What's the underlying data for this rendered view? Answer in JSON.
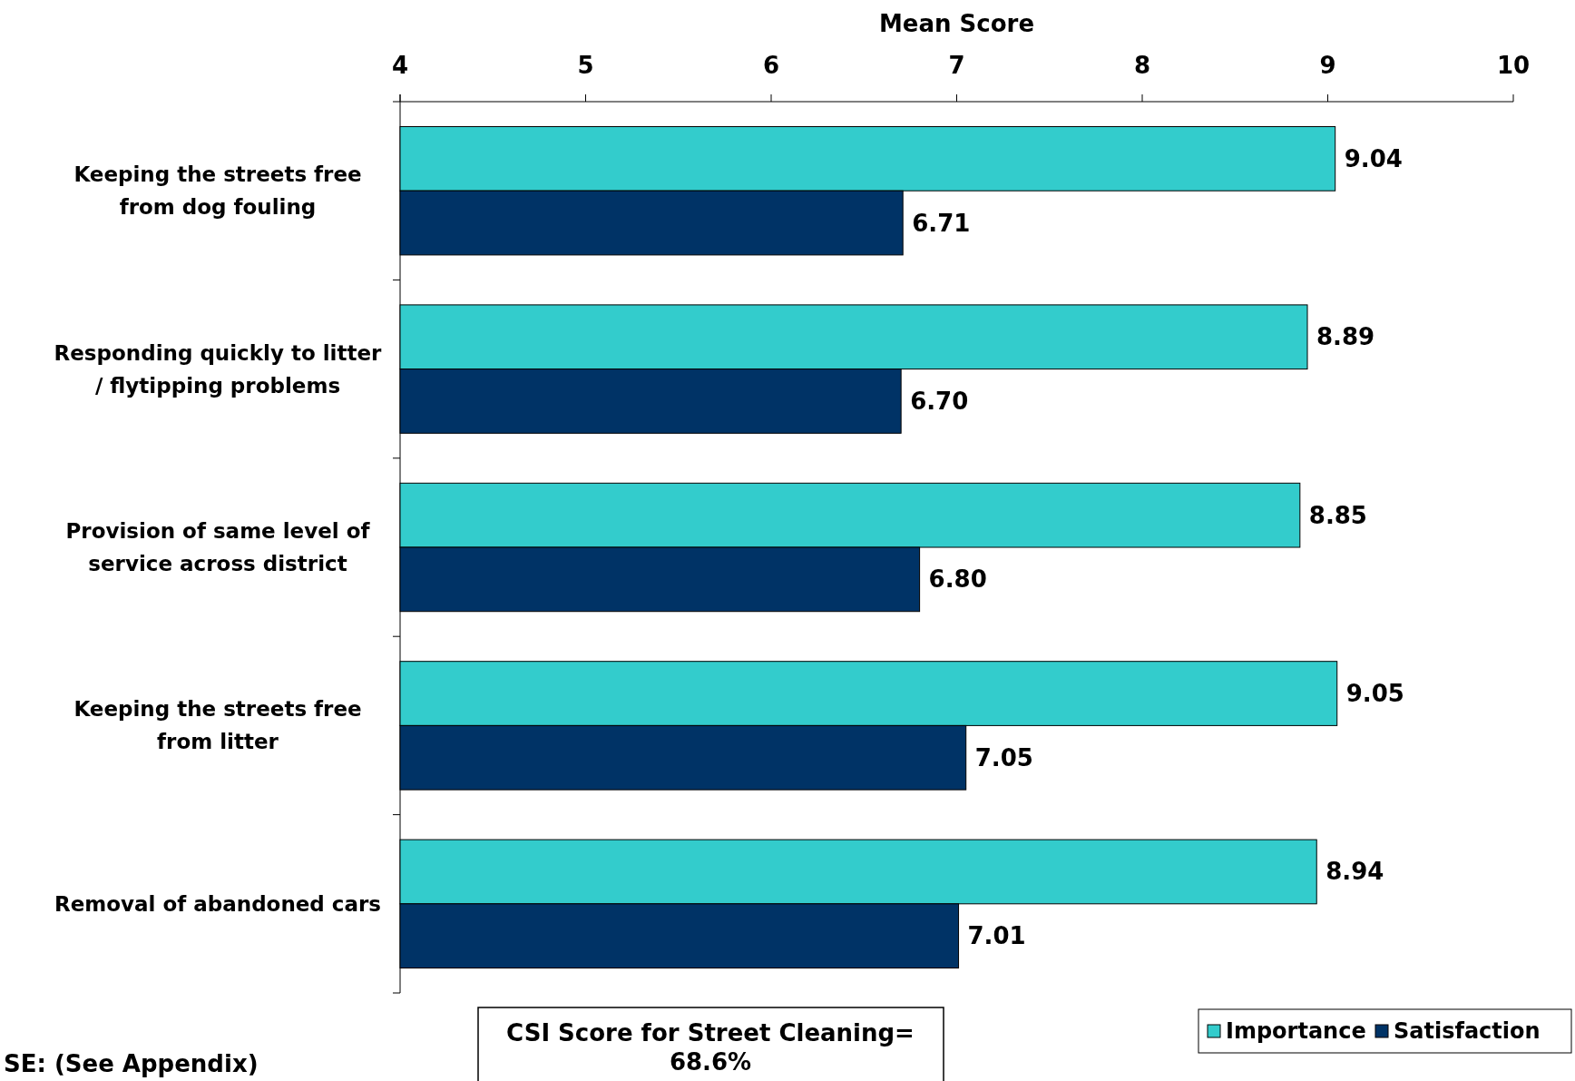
{
  "chart_data": {
    "type": "bar",
    "orientation": "horizontal",
    "xlabel": "Mean Score",
    "categories": [
      "Keeping the streets free from dog fouling",
      "Responding quickly to litter / flytipping problems",
      "Provision of same level of service across district",
      "Keeping the streets free from litter",
      "Removal of abandoned cars"
    ],
    "series": [
      {
        "name": "Importance",
        "color": "#33cccc",
        "values": [
          9.04,
          8.89,
          8.85,
          9.05,
          8.94
        ],
        "value_labels": [
          "9.04",
          "8.89",
          "8.85",
          "9.05",
          "8.94"
        ]
      },
      {
        "name": "Satisfaction",
        "color": "#003366",
        "values": [
          6.71,
          6.7,
          6.8,
          7.05,
          7.01
        ],
        "value_labels": [
          "6.71",
          "6.70",
          "6.80",
          "7.05",
          "7.01"
        ]
      }
    ],
    "xlim": [
      4,
      10
    ],
    "xticks": [
      4,
      5,
      6,
      7,
      8,
      9,
      10
    ],
    "legend": "bottom right",
    "grid": false,
    "annotations": [
      "CSI Score for Street Cleaning= 68.6%",
      "SE: (See Appendix)"
    ]
  }
}
